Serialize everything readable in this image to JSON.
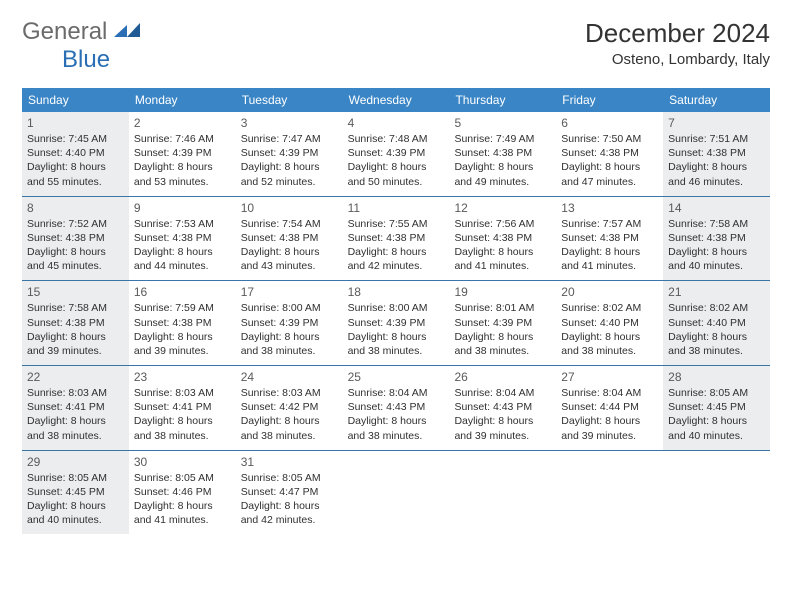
{
  "branding": {
    "word1": "General",
    "word2": "Blue",
    "logo_gray": "#6b6b6b",
    "logo_blue": "#2a6fb5",
    "mark_color": "#2a6fb5"
  },
  "title": "December 2024",
  "location": "Osteno, Lombardy, Italy",
  "colors": {
    "header_bg": "#3a85c6",
    "header_text": "#ffffff",
    "week_border": "#3a75a8",
    "shade_bg": "#ebedef",
    "body_bg": "#ffffff",
    "text": "#333333",
    "daynum": "#5a5a5a"
  },
  "day_names": [
    "Sunday",
    "Monday",
    "Tuesday",
    "Wednesday",
    "Thursday",
    "Friday",
    "Saturday"
  ],
  "weeks": [
    [
      {
        "n": "1",
        "sr": "7:45 AM",
        "ss": "4:40 PM",
        "dl": "8 hours and 55 minutes.",
        "shade": true
      },
      {
        "n": "2",
        "sr": "7:46 AM",
        "ss": "4:39 PM",
        "dl": "8 hours and 53 minutes.",
        "shade": false
      },
      {
        "n": "3",
        "sr": "7:47 AM",
        "ss": "4:39 PM",
        "dl": "8 hours and 52 minutes.",
        "shade": false
      },
      {
        "n": "4",
        "sr": "7:48 AM",
        "ss": "4:39 PM",
        "dl": "8 hours and 50 minutes.",
        "shade": false
      },
      {
        "n": "5",
        "sr": "7:49 AM",
        "ss": "4:38 PM",
        "dl": "8 hours and 49 minutes.",
        "shade": false
      },
      {
        "n": "6",
        "sr": "7:50 AM",
        "ss": "4:38 PM",
        "dl": "8 hours and 47 minutes.",
        "shade": false
      },
      {
        "n": "7",
        "sr": "7:51 AM",
        "ss": "4:38 PM",
        "dl": "8 hours and 46 minutes.",
        "shade": true
      }
    ],
    [
      {
        "n": "8",
        "sr": "7:52 AM",
        "ss": "4:38 PM",
        "dl": "8 hours and 45 minutes.",
        "shade": true
      },
      {
        "n": "9",
        "sr": "7:53 AM",
        "ss": "4:38 PM",
        "dl": "8 hours and 44 minutes.",
        "shade": false
      },
      {
        "n": "10",
        "sr": "7:54 AM",
        "ss": "4:38 PM",
        "dl": "8 hours and 43 minutes.",
        "shade": false
      },
      {
        "n": "11",
        "sr": "7:55 AM",
        "ss": "4:38 PM",
        "dl": "8 hours and 42 minutes.",
        "shade": false
      },
      {
        "n": "12",
        "sr": "7:56 AM",
        "ss": "4:38 PM",
        "dl": "8 hours and 41 minutes.",
        "shade": false
      },
      {
        "n": "13",
        "sr": "7:57 AM",
        "ss": "4:38 PM",
        "dl": "8 hours and 41 minutes.",
        "shade": false
      },
      {
        "n": "14",
        "sr": "7:58 AM",
        "ss": "4:38 PM",
        "dl": "8 hours and 40 minutes.",
        "shade": true
      }
    ],
    [
      {
        "n": "15",
        "sr": "7:58 AM",
        "ss": "4:38 PM",
        "dl": "8 hours and 39 minutes.",
        "shade": true
      },
      {
        "n": "16",
        "sr": "7:59 AM",
        "ss": "4:38 PM",
        "dl": "8 hours and 39 minutes.",
        "shade": false
      },
      {
        "n": "17",
        "sr": "8:00 AM",
        "ss": "4:39 PM",
        "dl": "8 hours and 38 minutes.",
        "shade": false
      },
      {
        "n": "18",
        "sr": "8:00 AM",
        "ss": "4:39 PM",
        "dl": "8 hours and 38 minutes.",
        "shade": false
      },
      {
        "n": "19",
        "sr": "8:01 AM",
        "ss": "4:39 PM",
        "dl": "8 hours and 38 minutes.",
        "shade": false
      },
      {
        "n": "20",
        "sr": "8:02 AM",
        "ss": "4:40 PM",
        "dl": "8 hours and 38 minutes.",
        "shade": false
      },
      {
        "n": "21",
        "sr": "8:02 AM",
        "ss": "4:40 PM",
        "dl": "8 hours and 38 minutes.",
        "shade": true
      }
    ],
    [
      {
        "n": "22",
        "sr": "8:03 AM",
        "ss": "4:41 PM",
        "dl": "8 hours and 38 minutes.",
        "shade": true
      },
      {
        "n": "23",
        "sr": "8:03 AM",
        "ss": "4:41 PM",
        "dl": "8 hours and 38 minutes.",
        "shade": false
      },
      {
        "n": "24",
        "sr": "8:03 AM",
        "ss": "4:42 PM",
        "dl": "8 hours and 38 minutes.",
        "shade": false
      },
      {
        "n": "25",
        "sr": "8:04 AM",
        "ss": "4:43 PM",
        "dl": "8 hours and 38 minutes.",
        "shade": false
      },
      {
        "n": "26",
        "sr": "8:04 AM",
        "ss": "4:43 PM",
        "dl": "8 hours and 39 minutes.",
        "shade": false
      },
      {
        "n": "27",
        "sr": "8:04 AM",
        "ss": "4:44 PM",
        "dl": "8 hours and 39 minutes.",
        "shade": false
      },
      {
        "n": "28",
        "sr": "8:05 AM",
        "ss": "4:45 PM",
        "dl": "8 hours and 40 minutes.",
        "shade": true
      }
    ],
    [
      {
        "n": "29",
        "sr": "8:05 AM",
        "ss": "4:45 PM",
        "dl": "8 hours and 40 minutes.",
        "shade": true
      },
      {
        "n": "30",
        "sr": "8:05 AM",
        "ss": "4:46 PM",
        "dl": "8 hours and 41 minutes.",
        "shade": false
      },
      {
        "n": "31",
        "sr": "8:05 AM",
        "ss": "4:47 PM",
        "dl": "8 hours and 42 minutes.",
        "shade": false
      },
      {
        "empty": true
      },
      {
        "empty": true
      },
      {
        "empty": true
      },
      {
        "empty": true
      }
    ]
  ],
  "labels": {
    "sunrise": "Sunrise: ",
    "sunset": "Sunset: ",
    "daylight": "Daylight: "
  },
  "typography": {
    "title_fontsize": 26,
    "location_fontsize": 15,
    "dayheader_fontsize": 12,
    "daynum_fontsize": 12,
    "dayinfo_fontsize": 10.5
  }
}
